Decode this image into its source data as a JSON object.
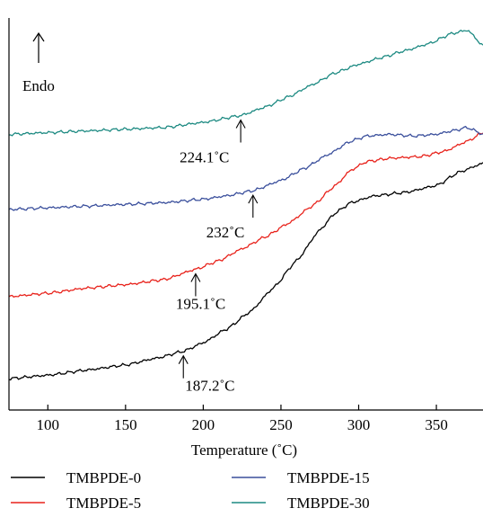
{
  "chart_data": {
    "type": "line",
    "title": "",
    "xlabel": "Temperature (˚C)",
    "ylabel": "",
    "xlim": [
      75,
      380
    ],
    "ylim": [
      0,
      100
    ],
    "xticks": [
      100,
      150,
      200,
      250,
      300,
      350
    ],
    "xtick_labels": [
      "100",
      "150",
      "200",
      "250",
      "300",
      "350"
    ],
    "yticks_shown": false,
    "grid": false,
    "legend_position": "bottom",
    "endo_label": "Endo",
    "series": [
      {
        "name": "TMBPDE-0",
        "color": "#000000",
        "x": [
          75,
          100,
          125,
          150,
          170,
          187.2,
          200,
          215,
          230,
          245,
          260,
          275,
          285,
          295,
          310,
          330,
          350,
          365,
          380
        ],
        "y": [
          0.5,
          1.5,
          3,
          4.5,
          6.5,
          8.5,
          11,
          15,
          20,
          27,
          35,
          44,
          49,
          52,
          54,
          55,
          57,
          61,
          63.5
        ]
      },
      {
        "name": "TMBPDE-5",
        "color": "#e8221b",
        "x": [
          75,
          100,
          125,
          150,
          175,
          195.1,
          210,
          225,
          240,
          255,
          270,
          285,
          295,
          305,
          320,
          340,
          355,
          370,
          380
        ],
        "y": [
          24.5,
          25.5,
          27,
          28,
          29.5,
          32.5,
          35,
          38.5,
          42,
          46,
          51,
          57,
          61.5,
          64,
          65,
          65.5,
          67,
          70,
          72.5
        ]
      },
      {
        "name": "TMBPDE-15",
        "color": "#3a4f9c",
        "x": [
          75,
          100,
          125,
          150,
          175,
          200,
          215,
          232,
          250,
          265,
          280,
          295,
          305,
          320,
          335,
          350,
          360,
          370,
          380
        ],
        "y": [
          50,
          50.5,
          51,
          51.5,
          52,
          53,
          54,
          55.5,
          58.5,
          62,
          66,
          70,
          71.5,
          72,
          71.5,
          72,
          73,
          74,
          72
        ]
      },
      {
        "name": "TMBPDE-30",
        "color": "#1d8a82",
        "x": [
          75,
          100,
          125,
          150,
          175,
          200,
          224.1,
          240,
          255,
          270,
          285,
          300,
          315,
          330,
          345,
          360,
          370,
          380
        ],
        "y": [
          72,
          72.5,
          73,
          73.5,
          74,
          75.5,
          77.5,
          80,
          83,
          86.5,
          90,
          92.5,
          94.5,
          96.5,
          98.5,
          101.5,
          102.5,
          98
        ]
      }
    ],
    "annotations": [
      {
        "text": "187.2˚C",
        "x": 187.2,
        "series": 0
      },
      {
        "text": "195.1˚C",
        "x": 195.1,
        "series": 1
      },
      {
        "text": "232˚C",
        "x": 232,
        "series": 2
      },
      {
        "text": "224.1˚C",
        "x": 224.1,
        "series": 3
      }
    ]
  }
}
